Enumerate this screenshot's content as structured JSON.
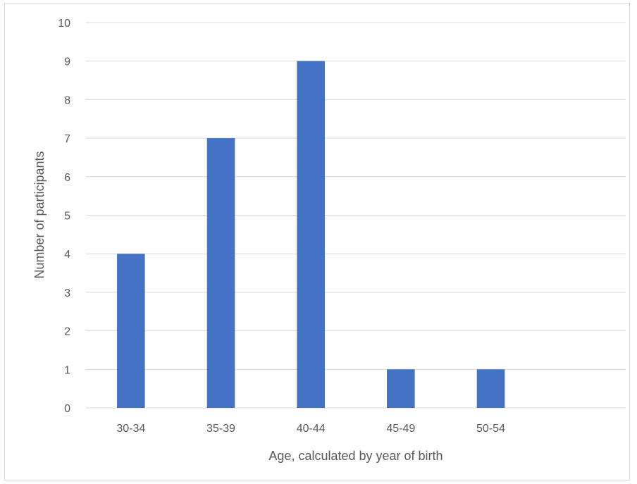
{
  "chart_data": {
    "type": "bar",
    "title": "",
    "xlabel": "Age, calculated by year of birth",
    "ylabel": "Number of participants",
    "categories": [
      "30-34",
      "35-39",
      "40-44",
      "45-49",
      "50-54",
      ""
    ],
    "values": [
      4,
      7,
      9,
      1,
      1,
      null
    ],
    "ylim": [
      0,
      10
    ],
    "yticks": [
      0,
      1,
      2,
      3,
      4,
      5,
      6,
      7,
      8,
      9,
      10
    ],
    "grid": "horizontal",
    "legend": "none",
    "bar_color": "#4472c4",
    "grid_color": "#d9d9d9"
  }
}
